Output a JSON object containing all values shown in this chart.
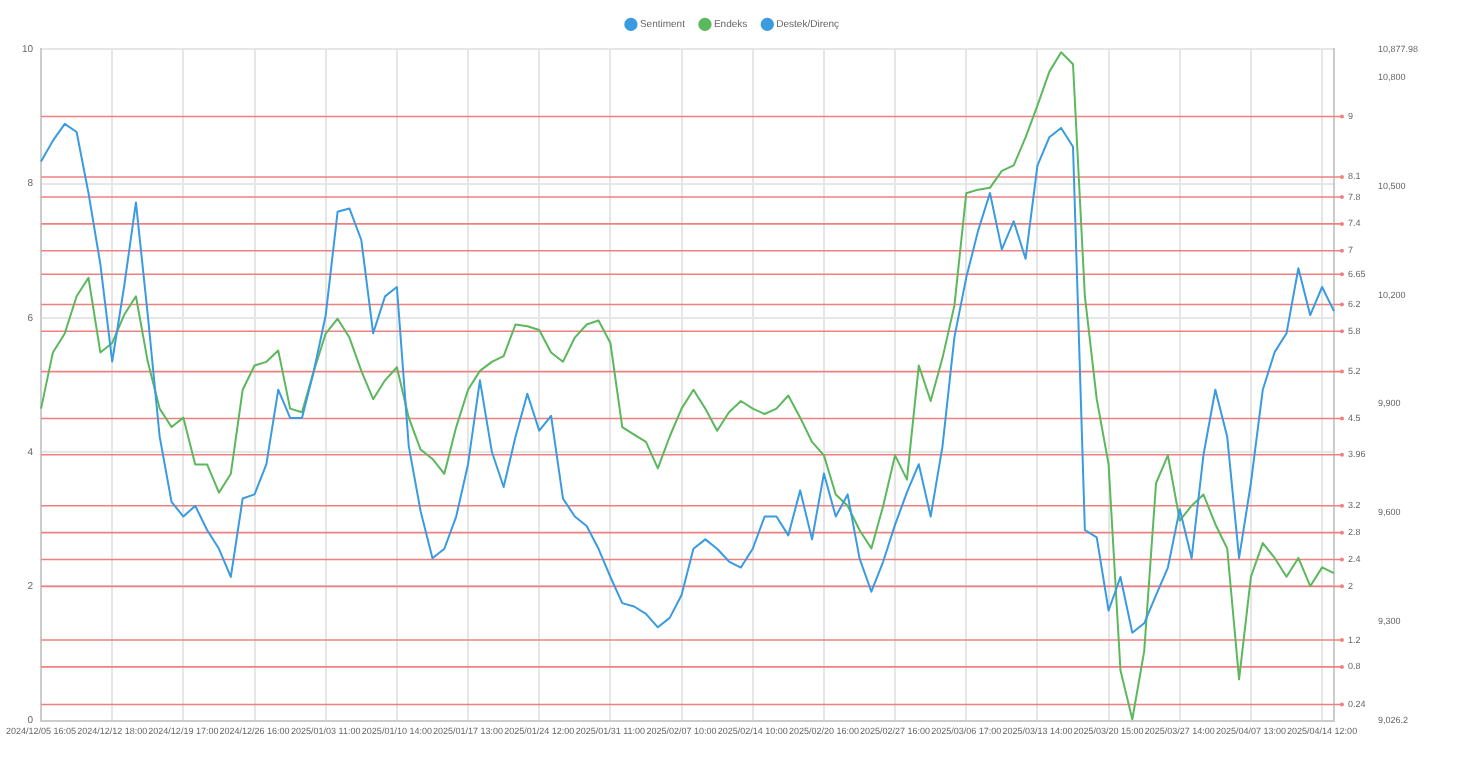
{
  "chart_data": {
    "type": "line",
    "categories": [
      "2024/12/05 16:05",
      null,
      null,
      null,
      null,
      null,
      "2024/12/12 18:00",
      null,
      null,
      null,
      null,
      null,
      "2024/12/19 17:00",
      null,
      null,
      null,
      null,
      null,
      "2024/12/26 16:00",
      null,
      null,
      null,
      null,
      null,
      "2025/01/03 11:00",
      null,
      null,
      null,
      null,
      null,
      "2025/01/10 14:00",
      null,
      null,
      null,
      null,
      null,
      "2025/01/17 13:00",
      null,
      null,
      null,
      null,
      null,
      "2025/01/24 12:00",
      null,
      null,
      null,
      null,
      null,
      "2025/01/31 11:00",
      null,
      null,
      null,
      null,
      null,
      "2025/02/07 10:00",
      null,
      null,
      null,
      null,
      null,
      "2025/02/14 10:00",
      null,
      null,
      null,
      null,
      null,
      "2025/02/20 16:00",
      null,
      null,
      null,
      null,
      null,
      "2025/02/27 16:00",
      null,
      null,
      null,
      null,
      null,
      "2025/03/06 17:00",
      null,
      null,
      null,
      null,
      null,
      "2025/03/13 14:00",
      null,
      null,
      null,
      null,
      null,
      "2025/03/20 15:00",
      null,
      null,
      null,
      null,
      null,
      "2025/03/27 14:00",
      null,
      null,
      null,
      null,
      null,
      "2025/04/07 13:00",
      null,
      null,
      null,
      null,
      null,
      "2025/04/14 12:00",
      null
    ],
    "series": [
      {
        "name": "Sentiment",
        "color": "#3a9be0",
        "axis": "y",
        "values": [
          8.33,
          8.64,
          8.89,
          8.77,
          7.86,
          6.8,
          5.35,
          6.46,
          7.72,
          6.04,
          4.23,
          3.26,
          3.04,
          3.2,
          2.84,
          2.56,
          2.14,
          3.31,
          3.37,
          3.82,
          4.93,
          4.51,
          4.51,
          5.21,
          6.04,
          7.58,
          7.63,
          7.16,
          5.77,
          6.32,
          6.46,
          4.09,
          3.12,
          2.42,
          2.56,
          3.04,
          3.82,
          5.07,
          4.01,
          3.48,
          4.23,
          4.87,
          4.32,
          4.54,
          3.31,
          3.04,
          2.9,
          2.56,
          2.14,
          1.75,
          1.7,
          1.59,
          1.39,
          1.53,
          1.87,
          2.56,
          2.7,
          2.56,
          2.37,
          2.28,
          2.56,
          3.04,
          3.04,
          2.76,
          3.43,
          2.7,
          3.68,
          3.04,
          3.37,
          2.42,
          1.92,
          2.37,
          2.92,
          3.4,
          3.82,
          3.04,
          4.09,
          5.71,
          6.6,
          7.3,
          7.86,
          7.02,
          7.44,
          6.88,
          8.27,
          8.69,
          8.83,
          8.55,
          2.84,
          2.73,
          1.64,
          2.14,
          1.31,
          1.45,
          1.87,
          2.28,
          3.15,
          2.42,
          3.96,
          4.93,
          4.23,
          2.42,
          3.54,
          4.93,
          5.49,
          5.77,
          6.74,
          6.04,
          6.46,
          6.1
        ]
      },
      {
        "name": "Endeks",
        "color": "#5cb85c",
        "axis": "y2",
        "values": [
          9887,
          10042,
          10094,
          10197,
          10248,
          10042,
          10068,
          10145,
          10197,
          10016,
          9887,
          9836,
          9862,
          9733,
          9733,
          9655,
          9707,
          9939,
          10006,
          10016,
          10047,
          9887,
          9877,
          9991,
          10094,
          10135,
          10083,
          9991,
          9913,
          9965,
          10001,
          9862,
          9774,
          9748,
          9707,
          9836,
          9939,
          9991,
          10016,
          10032,
          10119,
          10114,
          10104,
          10042,
          10016,
          10083,
          10119,
          10130,
          10068,
          9836,
          9815,
          9795,
          9722,
          9810,
          9887,
          9939,
          9887,
          9826,
          9877,
          9908,
          9887,
          9872,
          9887,
          9923,
          9862,
          9795,
          9758,
          9650,
          9619,
          9552,
          9501,
          9619,
          9758,
          9691,
          10006,
          9908,
          10027,
          10171,
          10481,
          10491,
          10496,
          10543,
          10558,
          10635,
          10723,
          10816,
          10870,
          10837,
          10197,
          9913,
          9733,
          9165,
          9030,
          9217,
          9681,
          9758,
          9578,
          9619,
          9650,
          9568,
          9501,
          9140,
          9423,
          9516,
          9475,
          9423,
          9475,
          9397,
          9449,
          9433
        ]
      },
      {
        "name": "Destek/Direnç",
        "color": "#3a9be0",
        "axis": "y",
        "values": [
          null,
          null,
          null,
          null,
          null,
          null,
          null,
          null,
          null,
          null,
          null,
          null,
          null,
          null,
          null,
          null,
          null,
          null,
          null,
          null,
          null,
          null,
          null,
          null,
          null,
          null,
          null,
          null,
          null,
          null,
          null,
          null,
          null,
          null,
          null,
          null,
          null,
          null,
          null,
          null,
          null,
          null,
          null,
          null,
          null,
          null,
          null,
          null,
          null,
          null,
          null,
          null,
          null,
          null,
          null,
          null,
          null,
          null,
          null,
          null,
          null,
          null,
          null,
          null,
          null,
          null,
          null,
          null,
          null,
          null,
          null,
          null,
          null,
          null,
          null,
          null,
          null,
          null,
          null,
          null,
          null,
          null,
          null,
          null,
          null,
          null,
          null,
          null,
          null,
          null,
          null,
          null,
          null,
          null,
          null,
          null,
          null,
          null,
          null,
          null,
          null,
          null,
          null,
          null,
          null,
          null,
          null,
          null,
          null,
          null
        ]
      }
    ],
    "ylim": [
      0,
      10
    ],
    "yticks": [
      0,
      2,
      4,
      6,
      8,
      10
    ],
    "y2lim": [
      9026.2,
      10877.98
    ],
    "y2ticks": [
      {
        "value": 9026.2,
        "label": "9,026.2"
      },
      {
        "value": 9300,
        "label": "9,300"
      },
      {
        "value": 9600,
        "label": "9,600"
      },
      {
        "value": 9900,
        "label": "9,900"
      },
      {
        "value": 10200,
        "label": "10,200"
      },
      {
        "value": 10500,
        "label": "10,500"
      },
      {
        "value": 10800,
        "label": "10,800"
      },
      {
        "value": 10877.98,
        "label": "10,877.98"
      }
    ],
    "ref_lines": [
      {
        "axis": "y",
        "value": 9,
        "label": "9",
        "color": "#f08080"
      },
      {
        "axis": "y",
        "value": 8.1,
        "label": "8.1",
        "color": "#f08080"
      },
      {
        "axis": "y",
        "value": 7.8,
        "label": "7.8",
        "color": "#f08080"
      },
      {
        "axis": "y",
        "value": 7.4,
        "label": "7.4",
        "color": "#f08080"
      },
      {
        "axis": "y",
        "value": 7,
        "label": "7",
        "color": "#f08080"
      },
      {
        "axis": "y",
        "value": 6.65,
        "label": "6.65",
        "color": "#f08080"
      },
      {
        "axis": "y",
        "value": 6.2,
        "label": "6.2",
        "color": "#f08080"
      },
      {
        "axis": "y",
        "value": 5.8,
        "label": "5.8",
        "color": "#f08080"
      },
      {
        "axis": "y",
        "value": 5.2,
        "label": "5.2",
        "color": "#f08080"
      },
      {
        "axis": "y",
        "value": 4.5,
        "label": "4.5",
        "color": "#f08080"
      },
      {
        "axis": "y",
        "value": 3.96,
        "label": "3.96",
        "color": "#f08080"
      },
      {
        "axis": "y",
        "value": 3.2,
        "label": "3.2",
        "color": "#f08080"
      },
      {
        "axis": "y",
        "value": 2.8,
        "label": "2.8",
        "color": "#f08080"
      },
      {
        "axis": "y",
        "value": 2.4,
        "label": "2.4",
        "color": "#f08080"
      },
      {
        "axis": "y",
        "value": 2,
        "label": "2",
        "color": "#f08080"
      },
      {
        "axis": "y",
        "value": 1.2,
        "label": "1.2",
        "color": "#f08080"
      },
      {
        "axis": "y",
        "value": 0.8,
        "label": "0.8",
        "color": "#f08080"
      },
      {
        "axis": "y",
        "value": 0.24,
        "label": "0.24",
        "color": "#f08080"
      }
    ],
    "grid": true,
    "legend": "top",
    "marker": "none",
    "line_style": "solid"
  }
}
